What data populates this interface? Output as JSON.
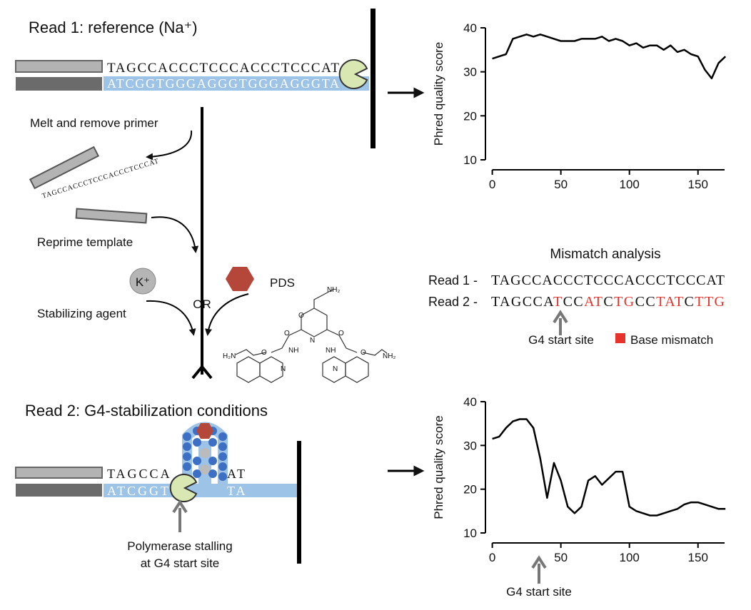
{
  "labels": {
    "read1_title": "Read 1: reference (Na⁺)",
    "melt": "Melt and remove primer",
    "reprime": "Reprime template",
    "k_plus": "K⁺",
    "stabilizing": "Stabilizing agent",
    "or": "OR",
    "pds": "PDS",
    "read2_title": "Read 2: G4-stabilization conditions",
    "stall": [
      "Polymerase stalling",
      "at G4 start site"
    ],
    "pds_structure": [
      "NH₂",
      "O",
      "N",
      "O",
      "NH",
      "O",
      "NH",
      "O",
      "O",
      "N",
      "N",
      "H₂N",
      "NH₂"
    ]
  },
  "duplex1": {
    "top": "TAGCCACCCTCCCACCCTCCCAT",
    "bottom": "ATCGGTGGGAGGGTGGGAGGGTA"
  },
  "removed_primer": "TAGCCACCCTCCCACCCTCCCAT",
  "duplex2": {
    "top": [
      "TAGCCA",
      "AT"
    ],
    "bottom": [
      "ATCGGT",
      "TA"
    ]
  },
  "mismatch": {
    "title": "Mismatch analysis",
    "rows": [
      {
        "label": "Read 1 -",
        "sequence": "TAGCCACCCTCCCACCCTCCCAT"
      },
      {
        "label": "Read 2 -",
        "sequence": "TAGCCATCCATCTGCCTATCTTG"
      }
    ],
    "start_site": "G4 start site",
    "legend": "Base mismatch",
    "mismatch_color": "#e8322c"
  },
  "chart_data": [
    {
      "type": "line",
      "ylabel": "Phred quality score",
      "color": "#000000",
      "x": [
        0,
        5,
        10,
        15,
        20,
        25,
        30,
        35,
        40,
        45,
        50,
        55,
        60,
        65,
        70,
        75,
        80,
        85,
        90,
        95,
        100,
        105,
        110,
        115,
        120,
        125,
        130,
        135,
        140,
        145,
        150,
        155,
        160,
        165,
        170
      ],
      "values": [
        33,
        33.5,
        34,
        37.5,
        38,
        38.5,
        38,
        38.5,
        38,
        37.5,
        37,
        37,
        37,
        37.5,
        37.5,
        37.5,
        38,
        37,
        37.5,
        37,
        36,
        36.5,
        35.5,
        36,
        36,
        35,
        36,
        34.5,
        35,
        34,
        33.5,
        30.5,
        28.5,
        32,
        33.5
      ],
      "xlim": [
        -5,
        172
      ],
      "ylim": [
        10,
        40
      ],
      "xticks": [
        0,
        50,
        100,
        150
      ],
      "yticks": [
        10,
        20,
        30,
        40
      ]
    },
    {
      "type": "line",
      "ylabel": "Phred quality score",
      "color": "#000000",
      "x": [
        0,
        5,
        10,
        15,
        20,
        25,
        30,
        35,
        40,
        45,
        50,
        55,
        60,
        65,
        70,
        75,
        80,
        85,
        90,
        95,
        100,
        105,
        110,
        115,
        120,
        125,
        130,
        135,
        140,
        145,
        150,
        155,
        160,
        165,
        170
      ],
      "values": [
        31.5,
        32,
        34,
        35.5,
        36,
        36,
        34,
        27,
        18,
        26,
        22,
        16,
        14.5,
        16,
        22,
        23,
        21,
        22.5,
        24,
        24,
        16,
        15,
        14.5,
        14,
        14,
        14.5,
        15,
        15.5,
        16.5,
        17,
        17,
        16.5,
        16,
        15.5,
        15.5
      ],
      "xlim": [
        -5,
        172
      ],
      "ylim": [
        10,
        40
      ],
      "xticks": [
        0,
        50,
        100,
        150
      ],
      "yticks": [
        10,
        20,
        30,
        40
      ],
      "annotation": "G4 start site"
    }
  ]
}
